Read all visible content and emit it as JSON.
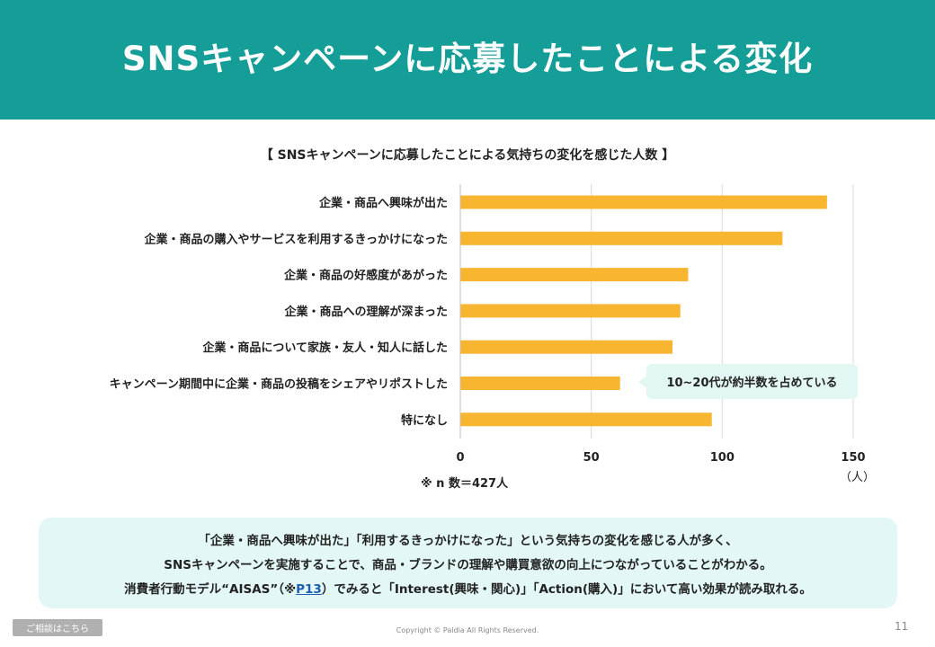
{
  "header": {
    "title": "SNSキャンペーンに応募したことによる変化"
  },
  "chart_data": {
    "type": "bar",
    "orientation": "horizontal",
    "title": "【 SNSキャンペーンに応募したことによる気持ちの変化を感じた人数 】",
    "categories": [
      "企業・商品へ興味が出た",
      "企業・商品の購入やサービスを利用するきっかけになった",
      "企業・商品の好感度があがった",
      "企業・商品への理解が深まった",
      "企業・商品について家族・友人・知人に話した",
      "キャンペーン期間中に企業・商品の投稿をシェアやリポストした",
      "特になし"
    ],
    "values": [
      140,
      123,
      87,
      84,
      81,
      61,
      96
    ],
    "xlim": [
      0,
      150
    ],
    "xticks": [
      "0",
      "50",
      "100",
      "150"
    ],
    "xlabel": "（人）",
    "grid": true,
    "bar_color": "#f8b530",
    "annotation": "10~20代が約半数を占めている",
    "note": "※ n 数＝427人"
  },
  "summary": {
    "line1": "「企業・商品へ興味が出た」「利用するきっかけになった」という気持ちの変化を感じる人が多く、",
    "line2": "SNSキャンペーンを実施することで、商品・ブランドの理解や購買意欲の向上につながっていることがわかる。",
    "line3_pre": "消費者行動モデル“AISAS”（※",
    "line3_link": "P13",
    "line3_post": "）でみると「Interest(興味・関心)」「Action(購入)」において高い効果が読み取れる。"
  },
  "footer": {
    "consult_label": "ご相談はこちら",
    "copyright": "Copyright © Paldia All Rights Reserved.",
    "page_number": "11"
  }
}
